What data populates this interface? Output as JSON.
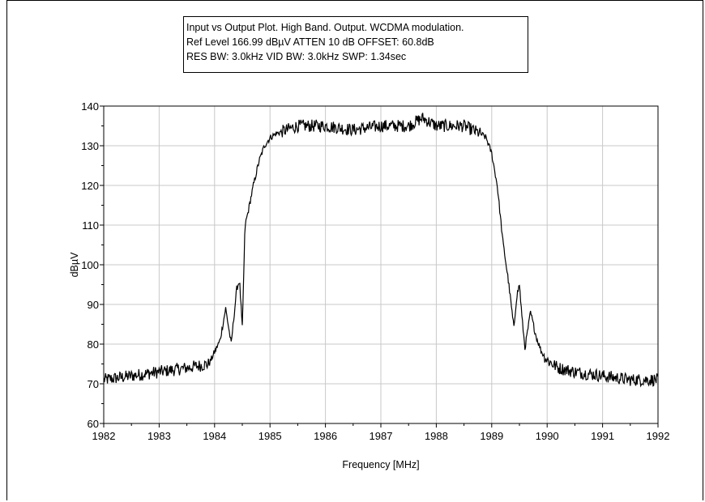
{
  "info": {
    "line1": "Input vs Output Plot.  High Band.  Output.  WCDMA modulation.",
    "line2": "Ref Level 166.99 dBµV     ATTEN 10 dB    OFFSET: 60.8dB",
    "line3": "RES BW: 3.0kHz  VID BW: 3.0kHz  SWP: 1.34sec"
  },
  "chart_data": {
    "type": "line",
    "title": "",
    "xlabel": "Frequency [MHz]",
    "ylabel": "dBµV",
    "xlim": [
      1982,
      1992
    ],
    "ylim": [
      60,
      140
    ],
    "xticks": [
      "1982",
      "1983",
      "1984",
      "1985",
      "1986",
      "1987",
      "1988",
      "1989",
      "1990",
      "1991",
      "1992"
    ],
    "yticks": [
      "60",
      "70",
      "80",
      "90",
      "100",
      "110",
      "120",
      "130",
      "140"
    ],
    "grid": true,
    "series": [
      {
        "color": "#000000",
        "x": [
          1982.0,
          1982.5,
          1983.0,
          1983.5,
          1983.9,
          1984.0,
          1984.1,
          1984.2,
          1984.3,
          1984.4,
          1984.45,
          1984.5,
          1984.55,
          1984.6,
          1984.7,
          1984.8,
          1984.9,
          1985.0,
          1985.1,
          1985.3,
          1985.5,
          1986.0,
          1986.5,
          1987.0,
          1987.5,
          1987.75,
          1988.0,
          1988.5,
          1988.8,
          1988.9,
          1989.0,
          1989.1,
          1989.2,
          1989.3,
          1989.4,
          1989.45,
          1989.5,
          1989.55,
          1989.6,
          1989.7,
          1989.8,
          1989.9,
          1990.0,
          1990.2,
          1990.5,
          1991.0,
          1991.5,
          1992.0
        ],
        "y": [
          71,
          72,
          73,
          74,
          75,
          78,
          81,
          89,
          80,
          94,
          96,
          84,
          110,
          113,
          120,
          126,
          130,
          132,
          133,
          134,
          135,
          135,
          134,
          135,
          135,
          137,
          135,
          135,
          133,
          132,
          128,
          120,
          106,
          96,
          84,
          92,
          95,
          86,
          79,
          88,
          82,
          78,
          76,
          74,
          73,
          72,
          71,
          71
        ]
      }
    ]
  }
}
